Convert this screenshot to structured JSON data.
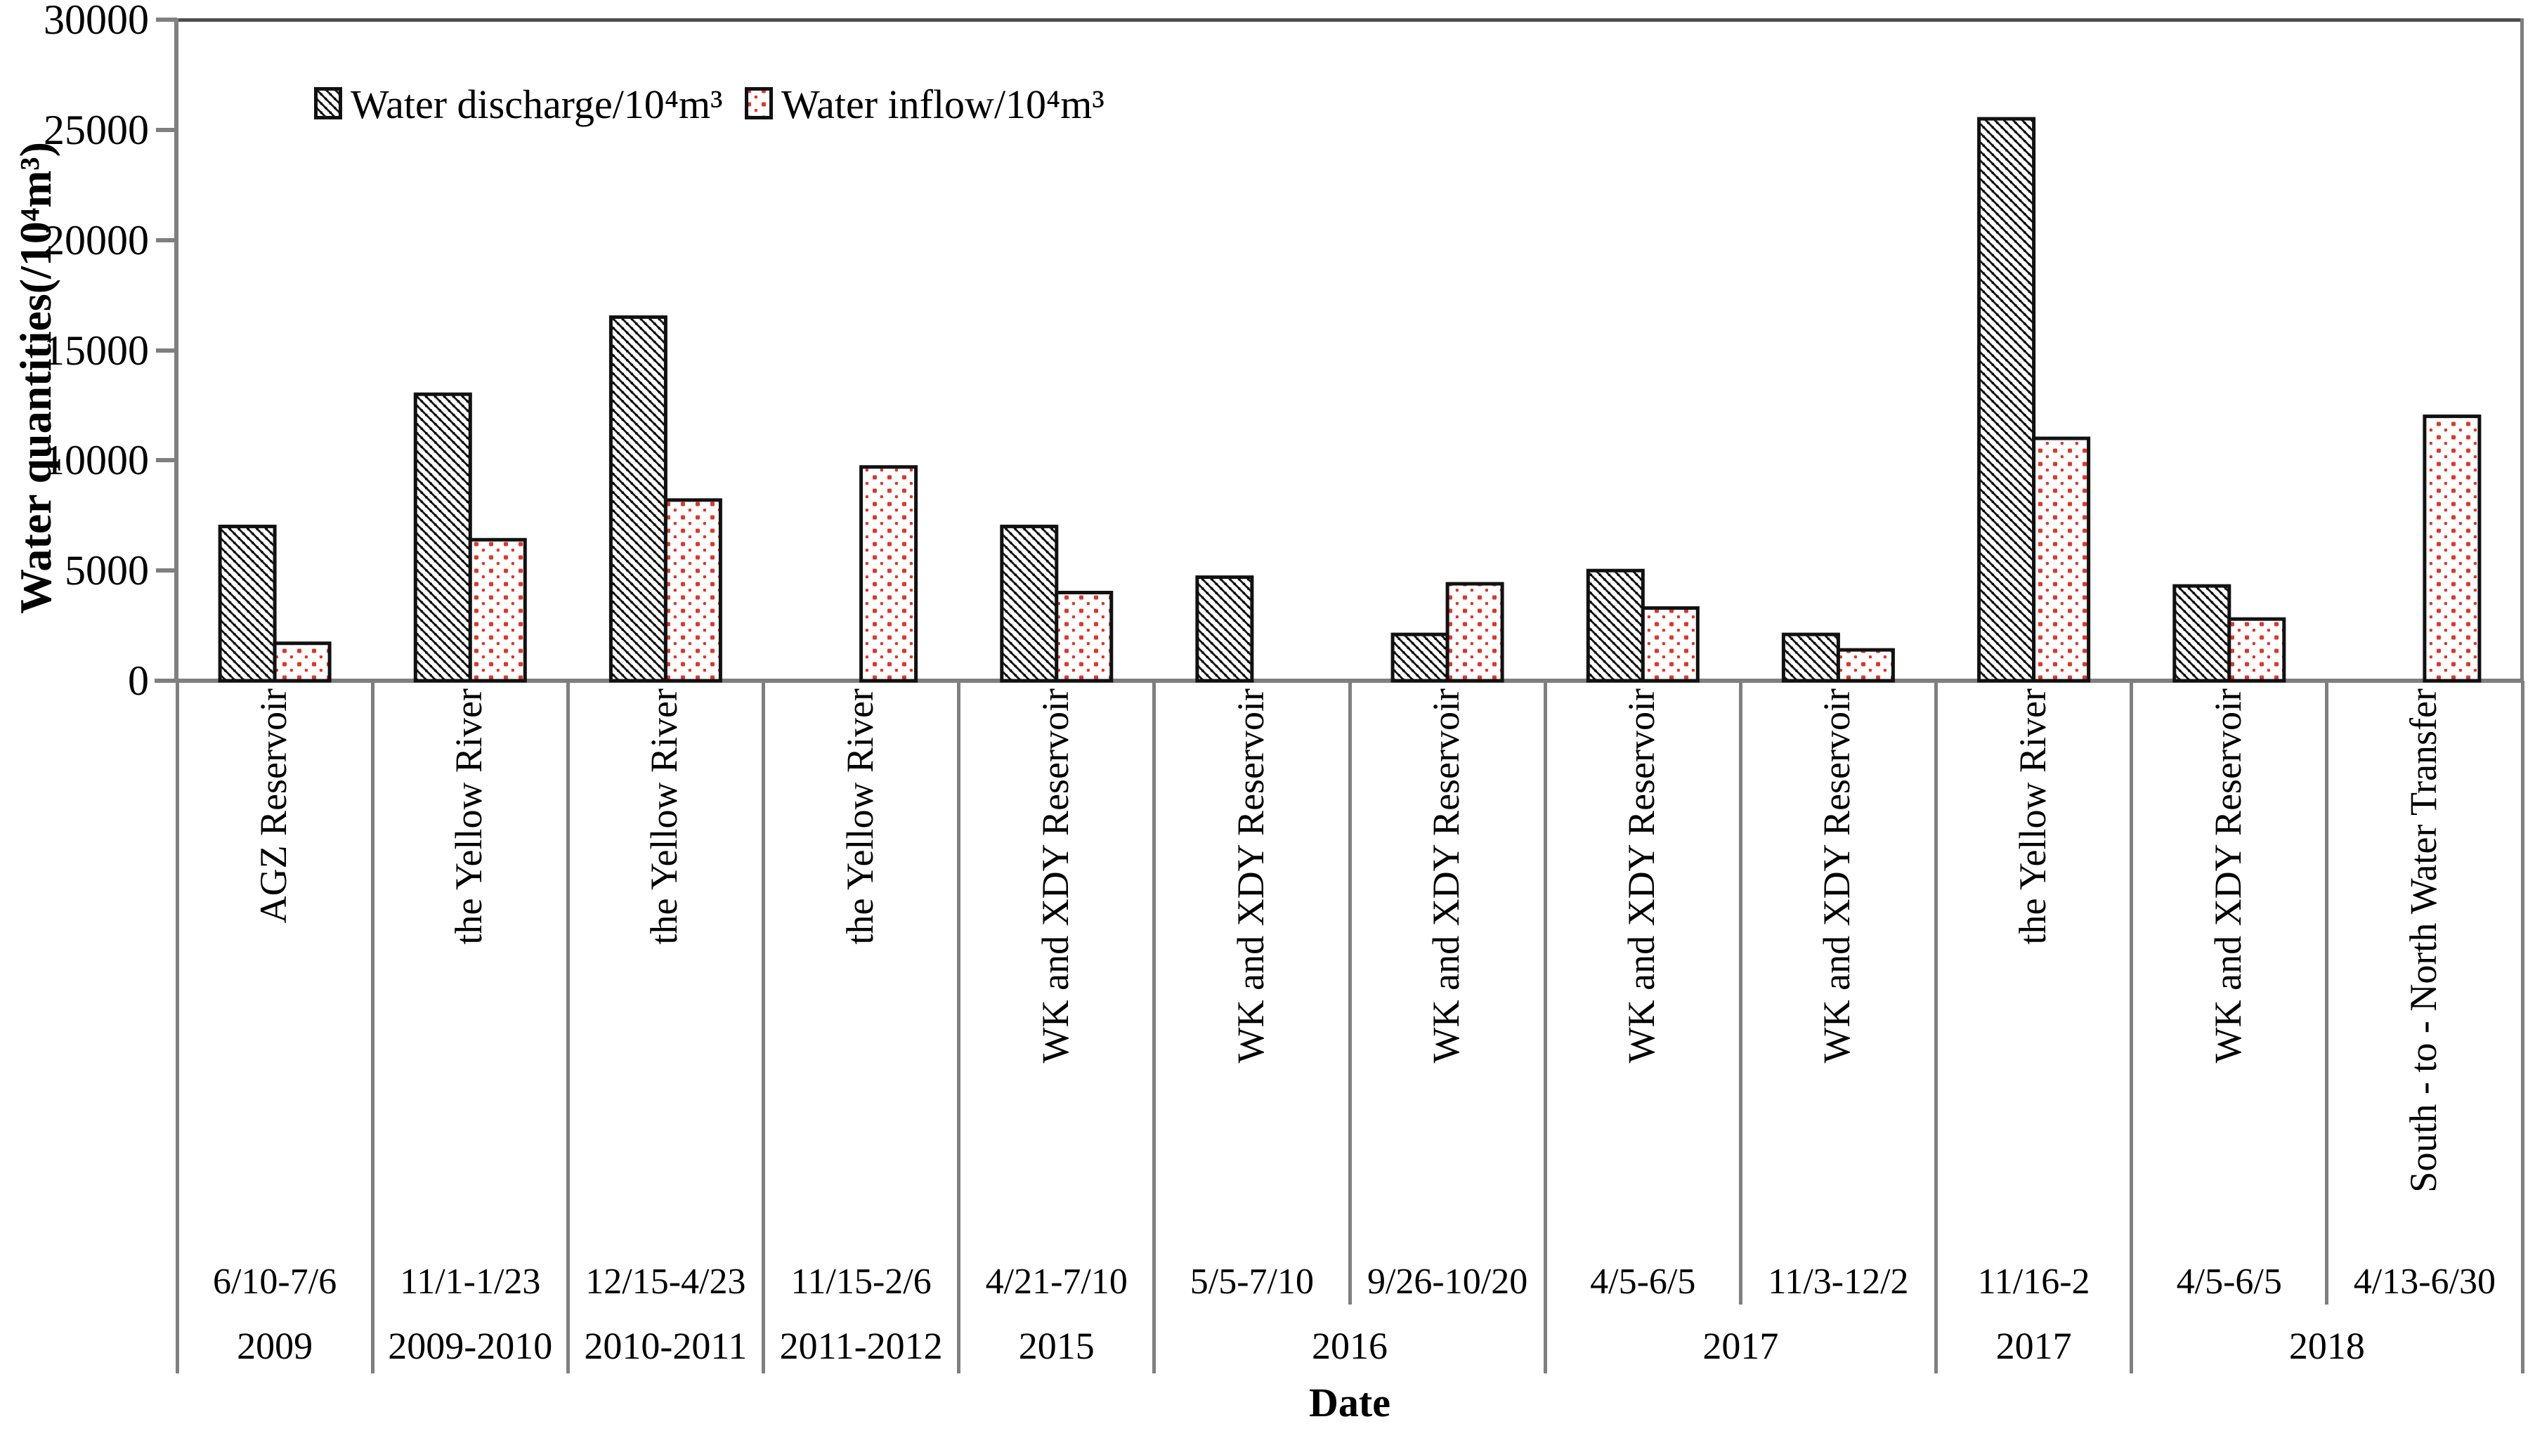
{
  "figure": {
    "y_axis_title": "Water quantities(/10⁴m³)",
    "x_axis_title": "Date",
    "legend": [
      {
        "label": "Water discharge/10⁴m³",
        "swatch": "black-diagonal-hatch"
      },
      {
        "label": "Water inflow/10⁴m³",
        "swatch": "red-dots"
      }
    ]
  },
  "chart_data": {
    "type": "bar",
    "title": "",
    "xlabel": "Date",
    "ylabel": "Water quantities(/10⁴m³)",
    "ylim": [
      0,
      30000
    ],
    "ytick_interval": 5000,
    "yticks": [
      0,
      5000,
      10000,
      15000,
      20000,
      25000,
      30000
    ],
    "grid": false,
    "legend_position": "top-left-inside",
    "unit": "10⁴m³",
    "categories": [
      {
        "source": "AGZ Reservoir",
        "date": "6/10-7/6",
        "year": "2009"
      },
      {
        "source": "the Yellow River",
        "date": "11/1-1/23",
        "year": "2009-2010"
      },
      {
        "source": "the Yellow River",
        "date": "12/15-4/23",
        "year": "2010-2011"
      },
      {
        "source": "the Yellow River",
        "date": "11/15-2/6",
        "year": "2011-2012"
      },
      {
        "source": "WK and XDY Reservoir",
        "date": "4/21-7/10",
        "year": "2015"
      },
      {
        "source": "WK and XDY Reservoir",
        "date": "5/5-7/10",
        "year": "2016"
      },
      {
        "source": "WK and XDY Reservoir",
        "date": "9/26-10/20",
        "year": "2016"
      },
      {
        "source": "WK and XDY Reservoir",
        "date": "4/5-6/5",
        "year": "2017"
      },
      {
        "source": "WK and XDY Reservoir",
        "date": "11/3-12/2",
        "year": "2017"
      },
      {
        "source": "the Yellow River",
        "date": "11/16-2",
        "year": "2017"
      },
      {
        "source": "WK and XDY Reservoir",
        "date": "4/5-6/5",
        "year": "2018"
      },
      {
        "source": "South - to - North Water Transfer",
        "date": "4/13-6/30",
        "year": "2018"
      }
    ],
    "year_cells": [
      {
        "label": "2009",
        "span": 1
      },
      {
        "label": "2009-2010",
        "span": 1
      },
      {
        "label": "2010-2011",
        "span": 1
      },
      {
        "label": "2011-2012",
        "span": 1
      },
      {
        "label": "2015",
        "span": 1
      },
      {
        "label": "2016",
        "span": 2
      },
      {
        "label": "2017",
        "span": 2
      },
      {
        "label": "2017",
        "span": 1
      },
      {
        "label": "2018",
        "span": 2
      }
    ],
    "series": [
      {
        "name": "Water discharge/10⁴m³",
        "pattern": "black-diagonal-hatch",
        "values": [
          7000,
          13000,
          16500,
          null,
          7000,
          4700,
          2100,
          5000,
          2100,
          25500,
          4300,
          null
        ]
      },
      {
        "name": "Water inflow/10⁴m³",
        "pattern": "red-dots",
        "values": [
          1700,
          6400,
          8200,
          9700,
          4000,
          null,
          4400,
          3300,
          1400,
          11000,
          2800,
          12000
        ]
      }
    ]
  },
  "colors": {
    "inflow_dot": "#e0352a",
    "hatch_line": "#161616",
    "bar_border": "#111111",
    "axis_gray": "#7f7f7f",
    "border_dark": "#4d4d4d",
    "text": "#000000",
    "background": "#ffffff"
  }
}
